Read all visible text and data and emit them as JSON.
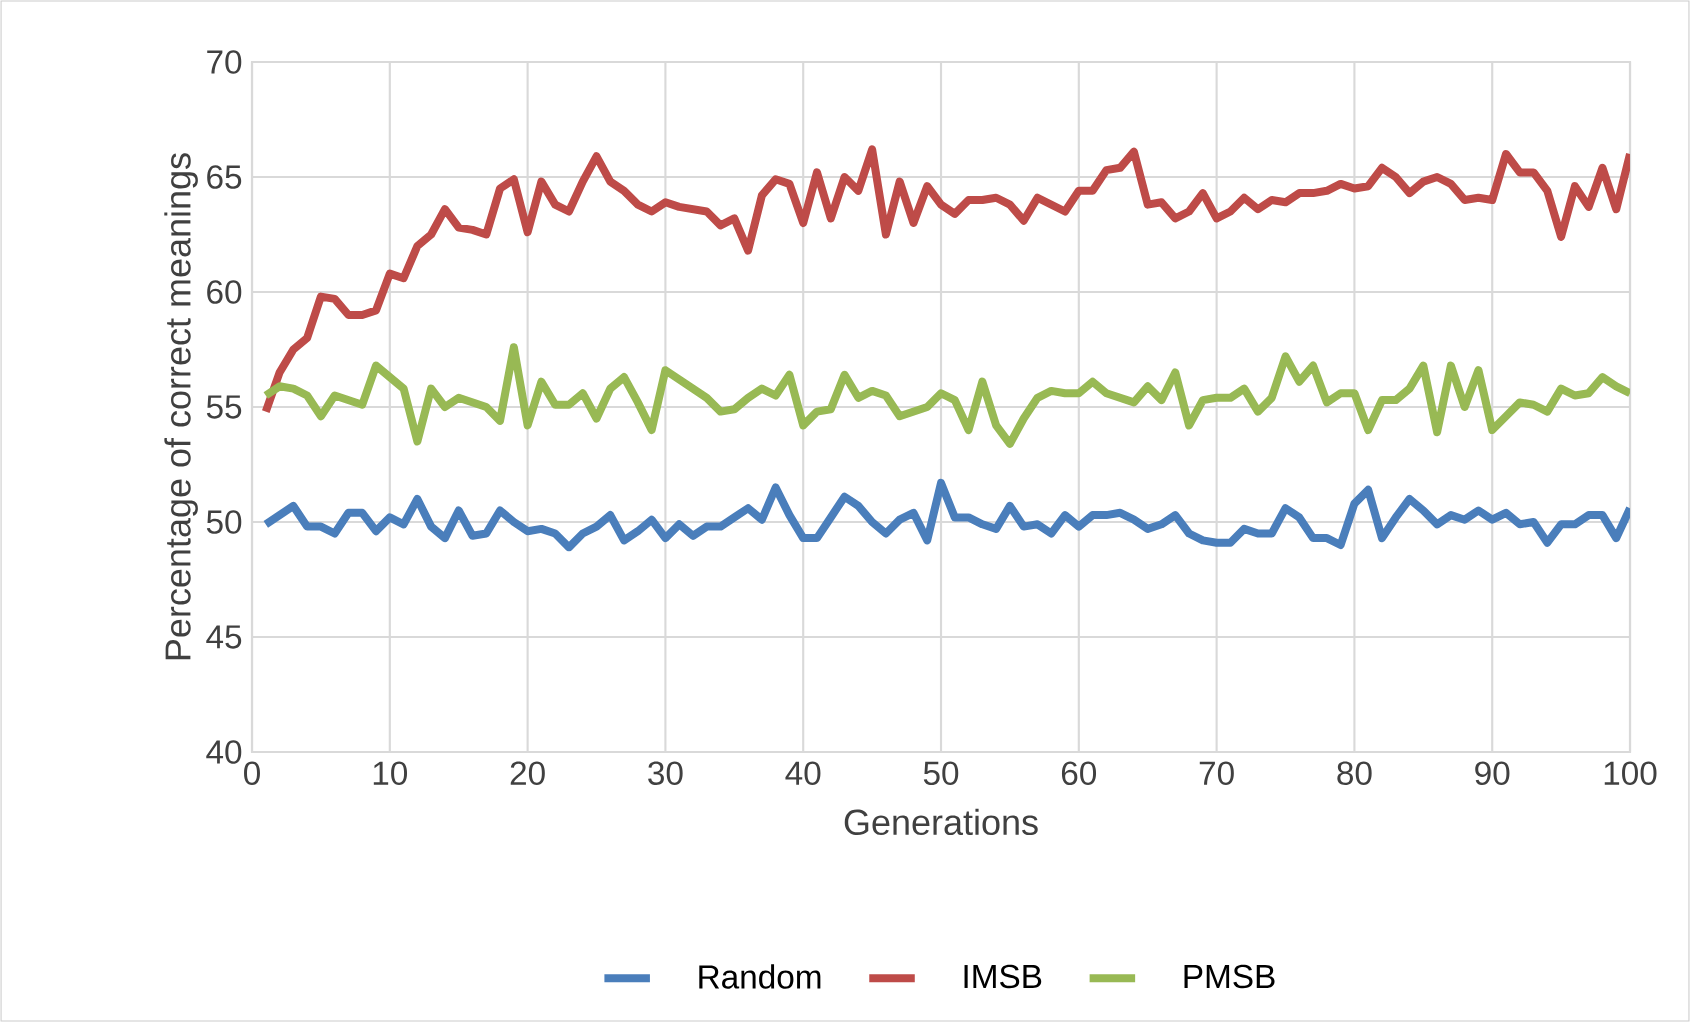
{
  "chart_data": {
    "type": "line",
    "xlabel": "Generations",
    "ylabel": "Percentage of correct meanings",
    "x": [
      1,
      2,
      3,
      4,
      5,
      6,
      7,
      8,
      9,
      10,
      11,
      12,
      13,
      14,
      15,
      16,
      17,
      18,
      19,
      20,
      21,
      22,
      23,
      24,
      25,
      26,
      27,
      28,
      29,
      30,
      31,
      32,
      33,
      34,
      35,
      36,
      37,
      38,
      39,
      40,
      41,
      42,
      43,
      44,
      45,
      46,
      47,
      48,
      49,
      50,
      51,
      52,
      53,
      54,
      55,
      56,
      57,
      58,
      59,
      60,
      61,
      62,
      63,
      64,
      65,
      66,
      67,
      68,
      69,
      70,
      71,
      72,
      73,
      74,
      75,
      76,
      77,
      78,
      79,
      80,
      81,
      82,
      83,
      84,
      85,
      86,
      87,
      88,
      89,
      90,
      91,
      92,
      93,
      94,
      95,
      96,
      97,
      98,
      99,
      100
    ],
    "series": [
      {
        "name": "Random",
        "color": "#4a7ebb",
        "values": [
          49.9,
          50.3,
          50.7,
          49.8,
          49.8,
          49.5,
          50.4,
          50.4,
          49.6,
          50.2,
          49.9,
          51.0,
          49.8,
          49.3,
          50.5,
          49.4,
          49.5,
          50.5,
          50.0,
          49.6,
          49.7,
          49.5,
          48.9,
          49.5,
          49.8,
          50.3,
          49.2,
          49.6,
          50.1,
          49.3,
          49.9,
          49.4,
          49.8,
          49.8,
          50.2,
          50.6,
          50.1,
          51.5,
          50.3,
          49.3,
          49.3,
          50.2,
          51.1,
          50.7,
          50.0,
          49.5,
          50.1,
          50.4,
          49.2,
          51.7,
          50.2,
          50.2,
          49.9,
          49.7,
          50.7,
          49.8,
          49.9,
          49.5,
          50.3,
          49.8,
          50.3,
          50.3,
          50.4,
          50.1,
          49.7,
          49.9,
          50.3,
          49.5,
          49.2,
          49.1,
          49.1,
          49.7,
          49.5,
          49.5,
          50.6,
          50.2,
          49.3,
          49.3,
          49.0,
          50.8,
          51.4,
          49.3,
          50.2,
          51.0,
          50.5,
          49.9,
          50.3,
          50.1,
          50.5,
          50.1,
          50.4,
          49.9,
          50.0,
          49.1,
          49.9,
          49.9,
          50.3,
          50.3,
          49.3,
          50.6
        ]
      },
      {
        "name": "IMSB",
        "color": "#be4b48",
        "values": [
          54.8,
          56.5,
          57.5,
          58.0,
          59.8,
          59.7,
          59.0,
          59.0,
          59.2,
          60.8,
          60.6,
          62.0,
          62.5,
          63.6,
          62.8,
          62.7,
          62.5,
          64.5,
          64.9,
          62.6,
          64.8,
          63.8,
          63.5,
          64.8,
          65.9,
          64.8,
          64.4,
          63.8,
          63.5,
          63.9,
          63.7,
          63.6,
          63.5,
          62.9,
          63.2,
          61.8,
          64.2,
          64.9,
          64.7,
          63.0,
          65.2,
          63.2,
          65.0,
          64.4,
          66.2,
          62.5,
          64.8,
          63.0,
          64.6,
          63.8,
          63.4,
          64.0,
          64.0,
          64.1,
          63.8,
          63.1,
          64.1,
          63.8,
          63.5,
          64.4,
          64.4,
          65.3,
          65.4,
          66.1,
          63.8,
          63.9,
          63.2,
          63.5,
          64.3,
          63.2,
          63.5,
          64.1,
          63.6,
          64.0,
          63.9,
          64.3,
          64.3,
          64.4,
          64.7,
          64.5,
          64.6,
          65.4,
          65.0,
          64.3,
          64.8,
          65.0,
          64.7,
          64.0,
          64.1,
          64.0,
          66.0,
          65.2,
          65.2,
          64.4,
          62.4,
          64.6,
          63.7,
          65.4,
          63.6,
          66.0
        ]
      },
      {
        "name": "PMSB",
        "color": "#98b954",
        "values": [
          55.5,
          55.9,
          55.8,
          55.5,
          54.6,
          55.5,
          55.3,
          55.1,
          56.8,
          56.3,
          55.8,
          53.5,
          55.8,
          55.0,
          55.4,
          55.2,
          55.0,
          54.4,
          57.6,
          54.2,
          56.1,
          55.1,
          55.1,
          55.6,
          54.5,
          55.8,
          56.3,
          55.2,
          54.0,
          56.6,
          56.2,
          55.8,
          55.4,
          54.8,
          54.9,
          55.4,
          55.8,
          55.5,
          56.4,
          54.2,
          54.8,
          54.9,
          56.4,
          55.4,
          55.7,
          55.5,
          54.6,
          54.8,
          55.0,
          55.6,
          55.3,
          54.0,
          56.1,
          54.2,
          53.4,
          54.5,
          55.4,
          55.7,
          55.6,
          55.6,
          56.1,
          55.6,
          55.4,
          55.2,
          55.9,
          55.3,
          56.5,
          54.2,
          55.3,
          55.4,
          55.4,
          55.8,
          54.8,
          55.4,
          57.2,
          56.1,
          56.8,
          55.2,
          55.6,
          55.6,
          54.0,
          55.3,
          55.3,
          55.8,
          56.8,
          53.9,
          56.8,
          55.0,
          56.6,
          54.0,
          54.6,
          55.2,
          55.1,
          54.8,
          55.8,
          55.5,
          55.6,
          56.3,
          55.9,
          55.6
        ]
      }
    ],
    "xlim": [
      0,
      100
    ],
    "xticks": [
      0,
      10,
      20,
      30,
      40,
      50,
      60,
      70,
      80,
      90,
      100
    ],
    "ylim": [
      40,
      70
    ],
    "yticks": [
      40,
      45,
      50,
      55,
      60,
      65,
      70
    ],
    "grid": true,
    "legend": "bottom",
    "marker": "none",
    "line_style": "solid"
  }
}
